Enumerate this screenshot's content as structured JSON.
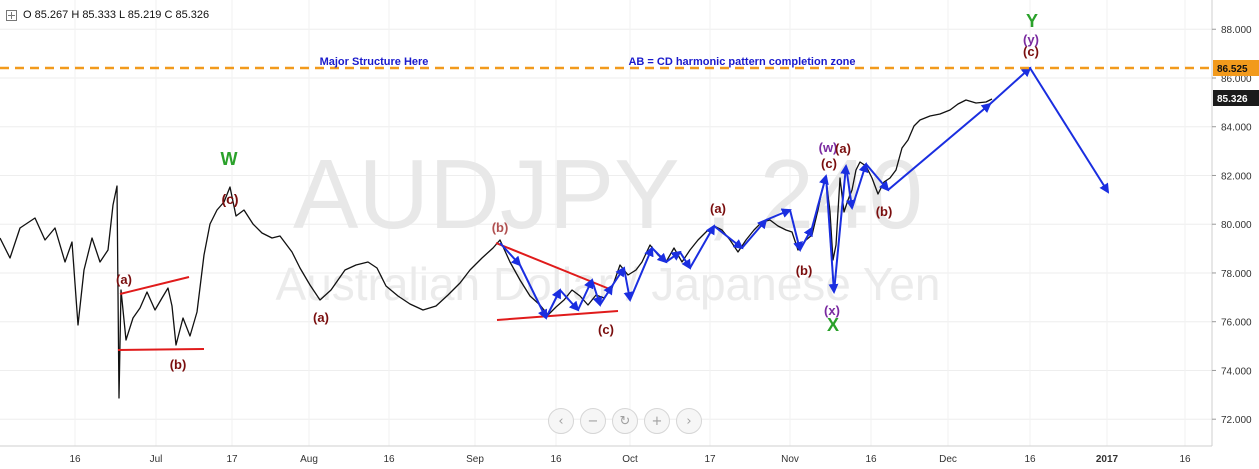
{
  "ohlc": {
    "text": "O 85.267 H 85.333 L 85.219 C 85.326"
  },
  "watermark": {
    "symbol": "AUDJPY , 240",
    "description": "Australian Dollar / Japanese Yen"
  },
  "nav": {
    "prev": "‹",
    "zoom_out": "−",
    "reset": "↻",
    "zoom_in": "+",
    "next": "›"
  },
  "chart_data": {
    "type": "line",
    "symbol": "AUDJPY",
    "timeframe": "240",
    "title": "AUDJPY , 240",
    "subtitle": "Australian Dollar / Japanese Yen",
    "ylim": [
      70.9,
      89.2
    ],
    "y_ticks": [
      72,
      74,
      76,
      78,
      80,
      82,
      84,
      86,
      88
    ],
    "y_tick_labels": [
      "72.000",
      "74.000",
      "76.000",
      "78.000",
      "80.000",
      "82.000",
      "84.000",
      "86.000",
      "88.000"
    ],
    "x_ticks": [
      "16",
      "Jul",
      "17",
      "Aug",
      "16",
      "Sep",
      "16",
      "Oct",
      "17",
      "Nov",
      "16",
      "Dec",
      "16",
      "2017",
      "16"
    ],
    "grid": true,
    "price_line": {
      "value": 86.525,
      "label": "86.525",
      "color": "#f29a1c",
      "style": "dashed"
    },
    "last_price": {
      "value": 85.326,
      "label": "85.326"
    },
    "annotations": [
      {
        "text": "Major Structure Here",
        "color": "#1a1acc"
      },
      {
        "text": "AB = CD harmonic pattern completion zone",
        "color": "#1a1acc"
      }
    ],
    "wave_labels": [
      {
        "text": "W",
        "color": "#2aa12a",
        "price": 82.7
      },
      {
        "text": "(c)",
        "color": "#7a0e0e",
        "price": 81.9
      },
      {
        "text": "(a)",
        "color": "#7a0e0e",
        "price": 77.0
      },
      {
        "text": "(b)",
        "color": "#7a0e0e",
        "price": 73.9
      },
      {
        "text": "(a)",
        "color": "#7a0e0e",
        "price": 75.8
      },
      {
        "text": "(b)",
        "color": "#b05050",
        "price": 79.8
      },
      {
        "text": "(c)",
        "color": "#7a0e0e",
        "price": 75.4
      },
      {
        "text": "(a)",
        "color": "#7a0e0e",
        "price": 80.6
      },
      {
        "text": "(b)",
        "color": "#7a0e0e",
        "price": 77.9
      },
      {
        "text": "(w)",
        "color": "#7a2aa0",
        "price": 83.1
      },
      {
        "text": "(a)",
        "color": "#7a0e0e",
        "price": 83.0
      },
      {
        "text": "(c)",
        "color": "#7a0e0e",
        "price": 82.4
      },
      {
        "text": "(x)",
        "color": "#7a2aa0",
        "price": 75.8
      },
      {
        "text": "X",
        "color": "#2aa12a",
        "price": 75.2
      },
      {
        "text": "(b)",
        "color": "#7a0e0e",
        "price": 80.5
      },
      {
        "text": "Y",
        "color": "#2aa12a",
        "price": 88.2
      },
      {
        "text": "(y)",
        "color": "#7a2aa0",
        "price": 87.5
      },
      {
        "text": "(c)",
        "color": "#7a0e0e",
        "price": 86.9
      }
    ],
    "colors": {
      "price": "#111111",
      "trendline": "#e01b1b",
      "projection": "#1a2ee0",
      "axis": "#cccccc",
      "watermark": "#e6e6e6"
    }
  }
}
